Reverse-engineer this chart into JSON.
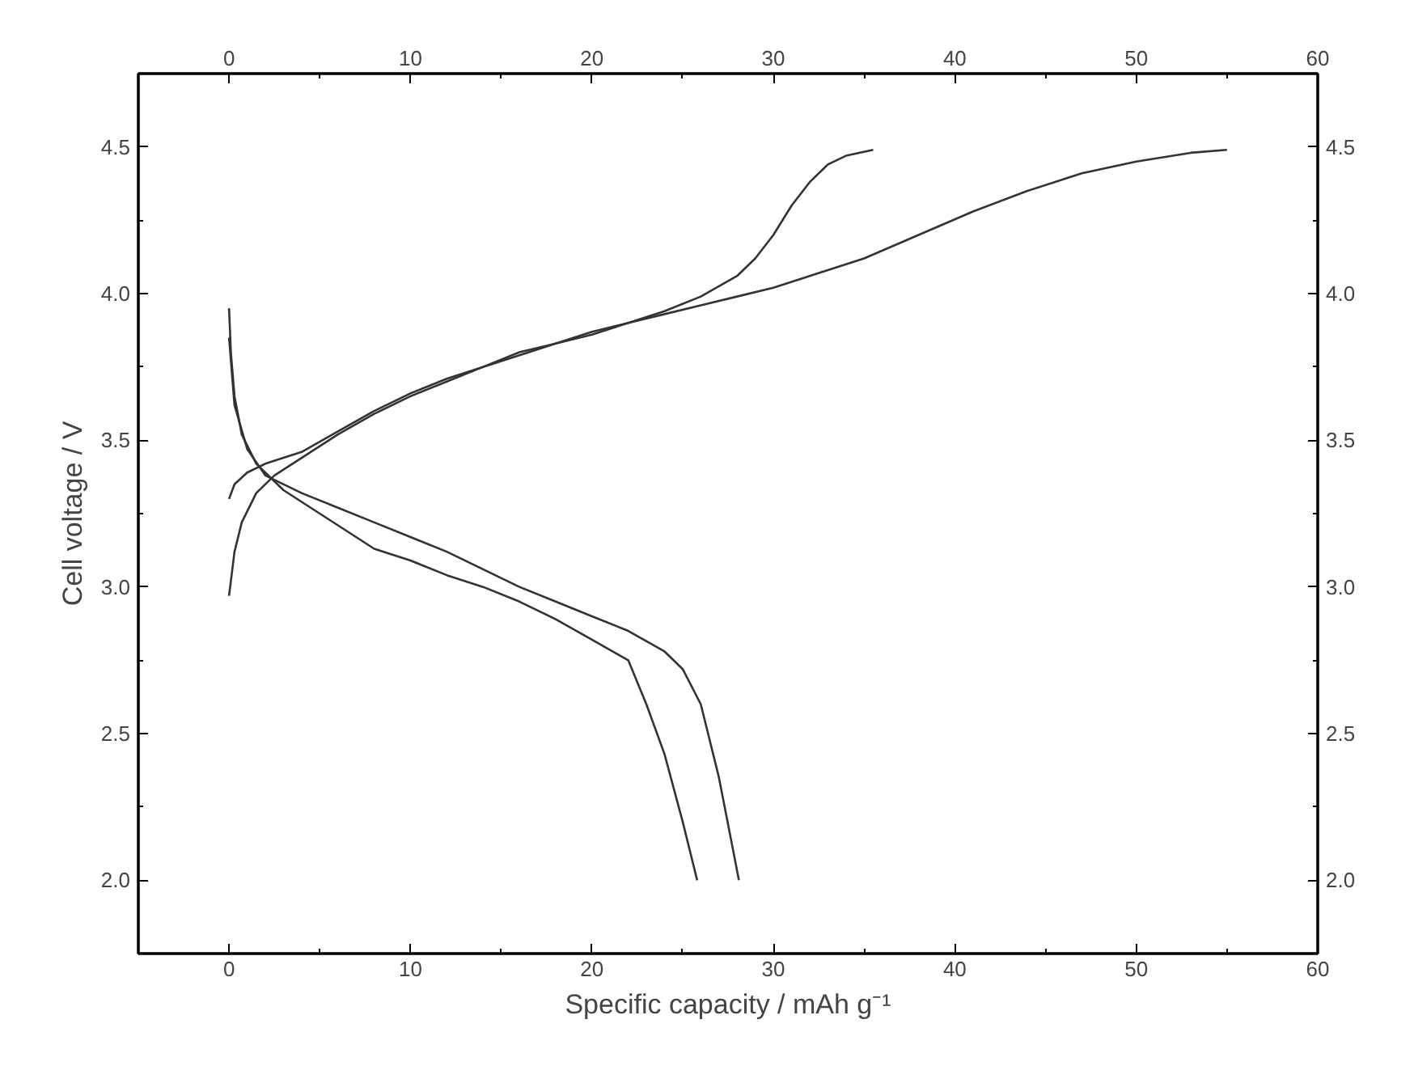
{
  "chart_data": {
    "type": "line",
    "xlabel": "Specific capacity / mAh g⁻¹",
    "ylabel": "Cell voltage / V",
    "xlim": [
      -5,
      60
    ],
    "xticks": [
      0,
      10,
      20,
      30,
      40,
      50,
      60
    ],
    "x2lim": [
      -5,
      60
    ],
    "x2ticks": [
      0,
      10,
      20,
      30,
      40,
      50,
      60
    ],
    "ylim": [
      1.75,
      4.75
    ],
    "yticks": [
      {
        "value": 2,
        "label": "2.0"
      },
      2.5,
      {
        "value": 3,
        "label": "3.0"
      },
      3.5,
      {
        "value": 4,
        "label": "4.0"
      },
      4.5
    ],
    "y2lim": [
      1.75,
      4.75
    ],
    "y2ticks": [
      {
        "value": 2,
        "label": "2.0"
      },
      2.5,
      {
        "value": 3,
        "label": "3.0"
      },
      3.5,
      {
        "value": 4,
        "label": "4.0"
      },
      4.5
    ],
    "grid": false,
    "line_style": "solid",
    "series": [
      {
        "color": "#333333",
        "x": [
          0,
          0.3,
          0.7,
          1.5,
          2.5,
          4,
          6,
          8,
          10,
          12,
          14,
          16,
          18,
          20,
          22,
          24,
          26,
          28,
          29,
          30,
          31,
          32,
          33,
          34,
          35.5
        ],
        "values": [
          2.97,
          3.12,
          3.22,
          3.32,
          3.38,
          3.44,
          3.52,
          3.59,
          3.65,
          3.7,
          3.75,
          3.79,
          3.83,
          3.87,
          3.9,
          3.94,
          3.99,
          4.06,
          4.12,
          4.2,
          4.3,
          4.38,
          4.44,
          4.47,
          4.49
        ]
      },
      {
        "color": "#333333",
        "x": [
          0,
          0.3,
          1,
          2,
          4,
          6,
          8,
          10,
          12,
          14,
          16,
          18,
          20,
          22,
          24,
          26,
          28,
          30,
          32,
          35,
          38,
          41,
          44,
          47,
          50,
          53,
          55
        ],
        "values": [
          3.3,
          3.35,
          3.39,
          3.42,
          3.46,
          3.53,
          3.6,
          3.66,
          3.71,
          3.75,
          3.8,
          3.83,
          3.86,
          3.9,
          3.93,
          3.96,
          3.99,
          4.02,
          4.06,
          4.12,
          4.2,
          4.28,
          4.35,
          4.41,
          4.45,
          4.48,
          4.49
        ]
      },
      {
        "color": "#333333",
        "x": [
          0,
          0.1,
          0.3,
          0.7,
          1.5,
          3,
          5,
          7,
          8,
          10,
          12,
          14,
          16,
          18,
          20,
          22,
          23,
          24,
          25,
          25.8
        ],
        "values": [
          3.95,
          3.8,
          3.65,
          3.52,
          3.42,
          3.33,
          3.25,
          3.17,
          3.13,
          3.09,
          3.04,
          3.0,
          2.95,
          2.89,
          2.82,
          2.75,
          2.6,
          2.43,
          2.2,
          2.0
        ]
      },
      {
        "color": "#333333",
        "x": [
          0,
          0.3,
          1,
          2,
          4,
          6,
          8,
          10,
          12,
          14,
          16,
          18,
          20,
          22,
          24,
          25,
          26,
          27,
          28.1
        ],
        "values": [
          3.85,
          3.62,
          3.47,
          3.38,
          3.32,
          3.27,
          3.22,
          3.17,
          3.12,
          3.06,
          3.0,
          2.95,
          2.9,
          2.85,
          2.78,
          2.72,
          2.6,
          2.35,
          2.0
        ]
      }
    ]
  }
}
